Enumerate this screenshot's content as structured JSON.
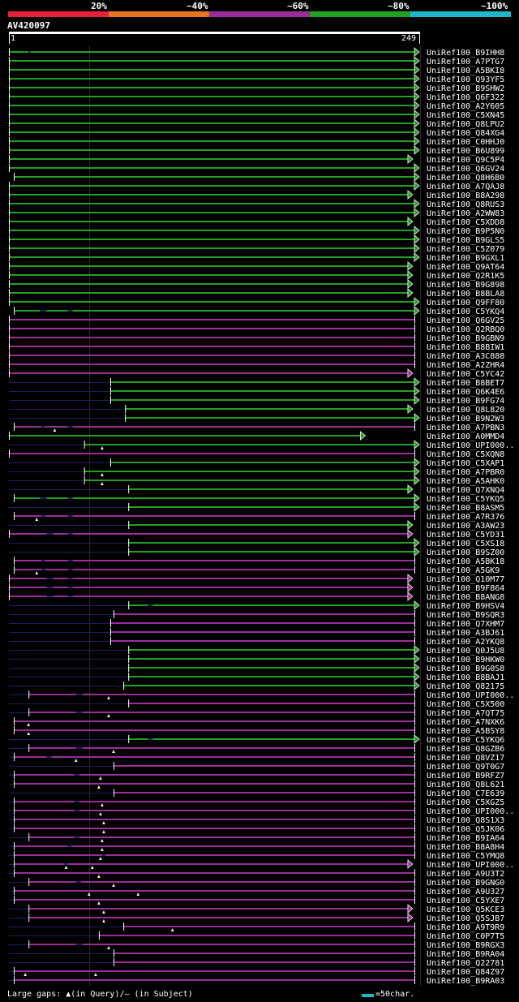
{
  "header": {
    "pct_labels": [
      "20%",
      "~40%",
      "~60%",
      "~80%",
      "~100%"
    ],
    "band_colors": [
      "#e8213a",
      "#e87320",
      "#9a2d9a",
      "#22a022",
      "#1fb8c8"
    ],
    "query_id": "AV420097",
    "query_start": "1",
    "query_end": "249"
  },
  "footer": {
    "gaps_label": "Large gaps: ▲(in Query)/– (in Subject)",
    "scale_label": "=50char."
  },
  "colors": {
    "green": "#22a022",
    "purple": "#9a2d9a",
    "navy": "#1a2060",
    "tri": "#ffffcc"
  },
  "chart_data": {
    "type": "alignment",
    "query_length": 249,
    "hits": [
      {
        "id": "UniRef100_B9IHH8",
        "c": "g",
        "s": 1,
        "e": 249,
        "tr": 1,
        "d": [
          [
            13,
            14
          ]
        ]
      },
      {
        "id": "UniRef100_A7PTG7",
        "c": "g",
        "s": 1,
        "e": 249,
        "tr": 1
      },
      {
        "id": "UniRef100_A5BKI8",
        "c": "g",
        "s": 1,
        "e": 249,
        "tr": 1
      },
      {
        "id": "UniRef100_Q93YF5",
        "c": "g",
        "s": 1,
        "e": 249,
        "tr": 1
      },
      {
        "id": "UniRef100_B9SHW2",
        "c": "g",
        "s": 1,
        "e": 249,
        "tr": 1
      },
      {
        "id": "UniRef100_Q6F322",
        "c": "g",
        "s": 1,
        "e": 249,
        "tr": 1
      },
      {
        "id": "UniRef100_A2Y605",
        "c": "g",
        "s": 1,
        "e": 249,
        "tr": 1
      },
      {
        "id": "UniRef100_C5XN45",
        "c": "g",
        "s": 1,
        "e": 249,
        "tr": 1
      },
      {
        "id": "UniRef100_Q8LPU2",
        "c": "g",
        "s": 1,
        "e": 249,
        "tr": 1
      },
      {
        "id": "UniRef100_Q84XG4",
        "c": "g",
        "s": 1,
        "e": 249,
        "tr": 1
      },
      {
        "id": "UniRef100_C0HHJ0",
        "c": "g",
        "s": 1,
        "e": 249,
        "tr": 1
      },
      {
        "id": "UniRef100_B6U899",
        "c": "g",
        "s": 1,
        "e": 249,
        "tr": 1
      },
      {
        "id": "UniRef100_Q9C5P4",
        "c": "g",
        "s": 1,
        "e": 245,
        "tr": 1
      },
      {
        "id": "UniRef100_Q6GV24",
        "c": "g",
        "s": 1,
        "e": 249,
        "tr": 1
      },
      {
        "id": "UniRef100_Q8H6B0",
        "c": "g",
        "s": 4,
        "e": 249,
        "tr": 1
      },
      {
        "id": "UniRef100_A7QAJ8",
        "c": "g",
        "s": 1,
        "e": 249,
        "tr": 1
      },
      {
        "id": "UniRef100_B8A298",
        "c": "g",
        "s": 1,
        "e": 245,
        "tr": 1
      },
      {
        "id": "UniRef100_Q8RUS3",
        "c": "g",
        "s": 1,
        "e": 249,
        "tr": 1
      },
      {
        "id": "UniRef100_A2WW83",
        "c": "g",
        "s": 1,
        "e": 249,
        "tr": 1
      },
      {
        "id": "UniRef100_C5XDD8",
        "c": "g",
        "s": 1,
        "e": 245,
        "tr": 1
      },
      {
        "id": "UniRef100_B9P5N0",
        "c": "g",
        "s": 1,
        "e": 249,
        "tr": 1
      },
      {
        "id": "UniRef100_B9GLS5",
        "c": "g",
        "s": 1,
        "e": 249,
        "tr": 1
      },
      {
        "id": "UniRef100_C5Z079",
        "c": "g",
        "s": 1,
        "e": 249,
        "tr": 1
      },
      {
        "id": "UniRef100_B9GXL1",
        "c": "g",
        "s": 1,
        "e": 249,
        "tr": 1
      },
      {
        "id": "UniRef100_Q9AT64",
        "c": "g",
        "s": 1,
        "e": 245,
        "tr": 1
      },
      {
        "id": "UniRef100_Q2R1K5",
        "c": "g",
        "s": 1,
        "e": 245,
        "tr": 1
      },
      {
        "id": "UniRef100_B9G898",
        "c": "g",
        "s": 1,
        "e": 245,
        "tr": 1
      },
      {
        "id": "UniRef100_B8BLA8",
        "c": "g",
        "s": 1,
        "e": 245,
        "tr": 1
      },
      {
        "id": "UniRef100_Q9FF80",
        "c": "g",
        "s": 1,
        "e": 249,
        "tr": 1
      },
      {
        "id": "UniRef100_C5YKQ4",
        "c": "g",
        "s": 4,
        "e": 249,
        "tr": 1,
        "d": [
          [
            20,
            24
          ],
          [
            37,
            40
          ]
        ]
      },
      {
        "id": "UniRef100_Q6GV25",
        "c": "p",
        "s": 1,
        "e": 249,
        "tr": 0
      },
      {
        "id": "UniRef100_Q2RBQ0",
        "c": "p",
        "s": 1,
        "e": 249,
        "tr": 0
      },
      {
        "id": "UniRef100_B9GBN9",
        "c": "p",
        "s": 1,
        "e": 249,
        "tr": 0
      },
      {
        "id": "UniRef100_B8BIW1",
        "c": "p",
        "s": 1,
        "e": 249,
        "tr": 0
      },
      {
        "id": "UniRef100_A3C888",
        "c": "p",
        "s": 1,
        "e": 249,
        "tr": 0
      },
      {
        "id": "UniRef100_A2ZHR4",
        "c": "p",
        "s": 1,
        "e": 249,
        "tr": 0
      },
      {
        "id": "UniRef100_C5YC42",
        "c": "p",
        "s": 1,
        "e": 245,
        "tr": 1
      },
      {
        "id": "UniRef100_B8BET7",
        "c": "g",
        "s": 63,
        "e": 249,
        "tr": 1,
        "l": 1
      },
      {
        "id": "UniRef100_Q6K4E6",
        "c": "g",
        "s": 63,
        "e": 249,
        "tr": 1,
        "l": 1
      },
      {
        "id": "UniRef100_B9FG74",
        "c": "g",
        "s": 63,
        "e": 249,
        "tr": 1,
        "l": 1
      },
      {
        "id": "UniRef100_Q8L820",
        "c": "g",
        "s": 72,
        "e": 245,
        "tr": 1,
        "l": 1
      },
      {
        "id": "UniRef100_B9N2W3",
        "c": "g",
        "s": 72,
        "e": 249,
        "tr": 1,
        "l": 1
      },
      {
        "id": "UniRef100_A7PBN3",
        "c": "p",
        "s": 4,
        "e": 249,
        "tr": 0,
        "d": [
          [
            21,
            23
          ],
          [
            37,
            40
          ]
        ],
        "t": [
          29
        ]
      },
      {
        "id": "UniRef100_A0MMD4",
        "c": "g",
        "s": 1,
        "e": 216,
        "tr": 1
      },
      {
        "id": "UniRef100_UPI000..",
        "c": "g",
        "s": 47,
        "e": 249,
        "tr": 1,
        "l": 1,
        "t": [
          58
        ]
      },
      {
        "id": "UniRef100_C5XQN8",
        "c": "p",
        "s": 1,
        "e": 249,
        "tr": 0
      },
      {
        "id": "UniRef100_C5XAP1",
        "c": "g",
        "s": 63,
        "e": 249,
        "tr": 1,
        "l": 1
      },
      {
        "id": "UniRef100_A7PBR0",
        "c": "g",
        "s": 47,
        "e": 249,
        "tr": 1,
        "l": 1,
        "t": [
          58
        ]
      },
      {
        "id": "UniRef100_A5AHK0",
        "c": "g",
        "s": 47,
        "e": 249,
        "tr": 1,
        "l": 1,
        "t": [
          58
        ]
      },
      {
        "id": "UniRef100_Q7XNQ4",
        "c": "g",
        "s": 74,
        "e": 245,
        "tr": 1,
        "l": 1
      },
      {
        "id": "UniRef100_C5YKQ5",
        "c": "g",
        "s": 4,
        "e": 249,
        "tr": 1,
        "d": [
          [
            20,
            24
          ],
          [
            37,
            40
          ]
        ]
      },
      {
        "id": "UniRef100_B8ASM5",
        "c": "g",
        "s": 74,
        "e": 249,
        "tr": 1,
        "l": 1
      },
      {
        "id": "UniRef100_A7R376",
        "c": "p",
        "s": 4,
        "e": 249,
        "tr": 0,
        "d": [
          [
            21,
            23
          ],
          [
            37,
            40
          ]
        ],
        "t": [
          18
        ]
      },
      {
        "id": "UniRef100_A3AW23",
        "c": "g",
        "s": 74,
        "e": 245,
        "tr": 1,
        "l": 1
      },
      {
        "id": "UniRef100_C5YD31",
        "c": "p",
        "s": 1,
        "e": 245,
        "tr": 1,
        "d": [
          [
            24,
            28
          ],
          [
            37,
            40
          ]
        ]
      },
      {
        "id": "UniRef100_C5XS18",
        "c": "g",
        "s": 74,
        "e": 249,
        "tr": 1,
        "l": 1
      },
      {
        "id": "UniRef100_B9SZ00",
        "c": "g",
        "s": 74,
        "e": 249,
        "tr": 1,
        "l": 1
      },
      {
        "id": "UniRef100_A5BK18",
        "c": "p",
        "s": 4,
        "e": 249,
        "tr": 0,
        "d": [
          [
            21,
            23
          ],
          [
            37,
            40
          ]
        ]
      },
      {
        "id": "UniRef100_A5GK9",
        "c": "p",
        "s": 4,
        "e": 249,
        "tr": 0,
        "d": [
          [
            21,
            23
          ],
          [
            37,
            40
          ]
        ],
        "t": [
          18
        ]
      },
      {
        "id": "UniRef100_Q10M77",
        "c": "p",
        "s": 1,
        "e": 245,
        "tr": 1,
        "d": [
          [
            24,
            28
          ],
          [
            37,
            40
          ]
        ]
      },
      {
        "id": "UniRef100_B9F864",
        "c": "p",
        "s": 1,
        "e": 245,
        "tr": 1,
        "d": [
          [
            24,
            28
          ],
          [
            37,
            40
          ]
        ]
      },
      {
        "id": "UniRef100_B8ANG8",
        "c": "p",
        "s": 1,
        "e": 245,
        "tr": 1,
        "d": [
          [
            24,
            28
          ],
          [
            37,
            40
          ]
        ]
      },
      {
        "id": "UniRef100_B9HSV4",
        "c": "g",
        "s": 74,
        "e": 249,
        "tr": 1,
        "l": 1,
        "d": [
          [
            86,
            89
          ]
        ]
      },
      {
        "id": "UniRef100_B9SQR3",
        "c": "p",
        "s": 65,
        "e": 249,
        "tr": 0,
        "l": 1
      },
      {
        "id": "UniRef100_Q7XHM7",
        "c": "p",
        "s": 63,
        "e": 249,
        "tr": 0,
        "l": 1
      },
      {
        "id": "UniRef100_A3BJ61",
        "c": "p",
        "s": 63,
        "e": 249,
        "tr": 0,
        "l": 1
      },
      {
        "id": "UniRef100_A2YKQ8",
        "c": "p",
        "s": 63,
        "e": 249,
        "tr": 0,
        "l": 1
      },
      {
        "id": "UniRef100_Q0J5U8",
        "c": "g",
        "s": 74,
        "e": 249,
        "tr": 1,
        "l": 1
      },
      {
        "id": "UniRef100_B9HKW0",
        "c": "g",
        "s": 74,
        "e": 249,
        "tr": 1,
        "l": 1
      },
      {
        "id": "UniRef100_B9G0S8",
        "c": "g",
        "s": 74,
        "e": 249,
        "tr": 1,
        "l": 1
      },
      {
        "id": "UniRef100_B8BAJ1",
        "c": "g",
        "s": 74,
        "e": 249,
        "tr": 1,
        "l": 1
      },
      {
        "id": "UniRef100_Q82175",
        "c": "g",
        "s": 71,
        "e": 249,
        "tr": 1,
        "l": 1
      },
      {
        "id": "UniRef100_UPI000..",
        "c": "p",
        "s": 13,
        "e": 249,
        "tr": 0,
        "l": 1,
        "d": [
          [
            42,
            46
          ]
        ],
        "t": [
          62
        ]
      },
      {
        "id": "UniRef100_C5X500",
        "c": "p",
        "s": 74,
        "e": 249,
        "tr": 0,
        "l": 1
      },
      {
        "id": "UniRef100_A7QT75",
        "c": "p",
        "s": 13,
        "e": 249,
        "tr": 0,
        "l": 1,
        "d": [
          [
            42,
            46
          ]
        ],
        "t": [
          62
        ]
      },
      {
        "id": "UniRef100_A7NXK6",
        "c": "p",
        "s": 4,
        "e": 249,
        "tr": 0,
        "t": [
          13
        ]
      },
      {
        "id": "UniRef100_A5BSY8",
        "c": "p",
        "s": 4,
        "e": 249,
        "tr": 0,
        "t": [
          13
        ]
      },
      {
        "id": "UniRef100_C5YKQ6",
        "c": "g",
        "s": 74,
        "e": 249,
        "tr": 1,
        "l": 1,
        "d": [
          [
            86,
            89
          ]
        ]
      },
      {
        "id": "UniRef100_Q8GZB6",
        "c": "p",
        "s": 13,
        "e": 249,
        "tr": 0,
        "l": 1,
        "d": [
          [
            42,
            46
          ]
        ],
        "t": [
          65
        ]
      },
      {
        "id": "UniRef100_Q8VZ17",
        "c": "p",
        "s": 4,
        "e": 249,
        "tr": 0,
        "l": 1,
        "d": [
          [
            24,
            27
          ]
        ],
        "t": [
          42
        ]
      },
      {
        "id": "UniRef100_Q9T0G7",
        "c": "p",
        "s": 65,
        "e": 249,
        "tr": 0,
        "l": 1
      },
      {
        "id": "UniRef100_B9RFZ7",
        "c": "p",
        "s": 4,
        "e": 249,
        "tr": 0,
        "l": 1,
        "d": [
          [
            41,
            44
          ]
        ],
        "t": [
          57
        ]
      },
      {
        "id": "UniRef100_Q8L621",
        "c": "p",
        "s": 4,
        "e": 249,
        "tr": 0,
        "l": 1,
        "t": [
          56
        ]
      },
      {
        "id": "UniRef100_C7E639",
        "c": "p",
        "s": 65,
        "e": 249,
        "tr": 0,
        "l": 1
      },
      {
        "id": "UniRef100_C5XGZ5",
        "c": "p",
        "s": 4,
        "e": 249,
        "tr": 0,
        "l": 1,
        "d": [
          [
            41,
            44
          ]
        ],
        "t": [
          58
        ]
      },
      {
        "id": "UniRef100_UPI000..",
        "c": "p",
        "s": 4,
        "e": 249,
        "tr": 0,
        "l": 1,
        "d": [
          [
            41,
            44
          ]
        ],
        "t": [
          57
        ]
      },
      {
        "id": "UniRef100_Q8S1X3",
        "c": "p",
        "s": 4,
        "e": 249,
        "tr": 0,
        "l": 1,
        "t": [
          59
        ]
      },
      {
        "id": "UniRef100_Q5JK06",
        "c": "p",
        "s": 4,
        "e": 249,
        "tr": 0,
        "l": 1,
        "t": [
          59
        ]
      },
      {
        "id": "UniRef100_B9IA64",
        "c": "p",
        "s": 13,
        "e": 249,
        "tr": 0,
        "l": 1,
        "d": [
          [
            41,
            44
          ]
        ],
        "t": [
          58
        ]
      },
      {
        "id": "UniRef100_B8A8H4",
        "c": "p",
        "s": 4,
        "e": 249,
        "tr": 0,
        "l": 1,
        "d": [
          [
            37,
            39
          ]
        ],
        "t": [
          58
        ]
      },
      {
        "id": "UniRef100_C5YMQ8",
        "c": "p",
        "s": 4,
        "e": 249,
        "tr": 0,
        "l": 1,
        "d": [
          [
            58,
            60
          ]
        ],
        "t": [
          57
        ]
      },
      {
        "id": "UniRef100_UPI000..",
        "c": "p",
        "s": 4,
        "e": 245,
        "tr": 1,
        "l": 1,
        "d": [
          [
            35,
            37
          ]
        ],
        "t": [
          36,
          52
        ]
      },
      {
        "id": "UniRef100_A9U3T2",
        "c": "p",
        "s": 4,
        "e": 249,
        "tr": 0,
        "l": 1,
        "t": [
          56
        ]
      },
      {
        "id": "UniRef100_B9GNG0",
        "c": "p",
        "s": 13,
        "e": 249,
        "tr": 0,
        "l": 1,
        "d": [
          [
            42,
            45
          ]
        ],
        "t": [
          65
        ]
      },
      {
        "id": "UniRef100_A9U327",
        "c": "p",
        "s": 4,
        "e": 249,
        "tr": 0,
        "l": 1,
        "t": [
          50,
          80
        ]
      },
      {
        "id": "UniRef100_C5YXE7",
        "c": "p",
        "s": 4,
        "e": 249,
        "tr": 0,
        "l": 1,
        "t": [
          56
        ]
      },
      {
        "id": "UniRef100_Q5KCE3",
        "c": "p",
        "s": 13,
        "e": 245,
        "tr": 1,
        "l": 1,
        "t": [
          59
        ]
      },
      {
        "id": "UniRef100_Q5SJB7",
        "c": "p",
        "s": 13,
        "e": 245,
        "tr": 1,
        "l": 1,
        "t": [
          59
        ]
      },
      {
        "id": "UniRef100_A9T9R9",
        "c": "p",
        "s": 71,
        "e": 249,
        "tr": 0,
        "l": 1,
        "t": [
          101
        ]
      },
      {
        "id": "UniRef100_C0P7T5",
        "c": "p",
        "s": 56,
        "e": 249,
        "tr": 0,
        "l": 1
      },
      {
        "id": "UniRef100_B9RGX3",
        "c": "p",
        "s": 13,
        "e": 249,
        "tr": 0,
        "l": 1,
        "d": [
          [
            42,
            46
          ]
        ],
        "t": [
          62
        ]
      },
      {
        "id": "UniRef100_B9RA04",
        "c": "p",
        "s": 65,
        "e": 249,
        "tr": 0,
        "l": 1
      },
      {
        "id": "UniRef100_Q22781",
        "c": "p",
        "s": 65,
        "e": 249,
        "tr": 0,
        "l": 1
      },
      {
        "id": "UniRef100_Q84Z97",
        "c": "p",
        "s": 4,
        "e": 249,
        "tr": 0,
        "l": 1,
        "t": [
          11,
          54
        ]
      },
      {
        "id": "UniRef100_B9RA03",
        "c": "p",
        "s": 4,
        "e": 249,
        "tr": 0,
        "l": 1
      }
    ]
  }
}
